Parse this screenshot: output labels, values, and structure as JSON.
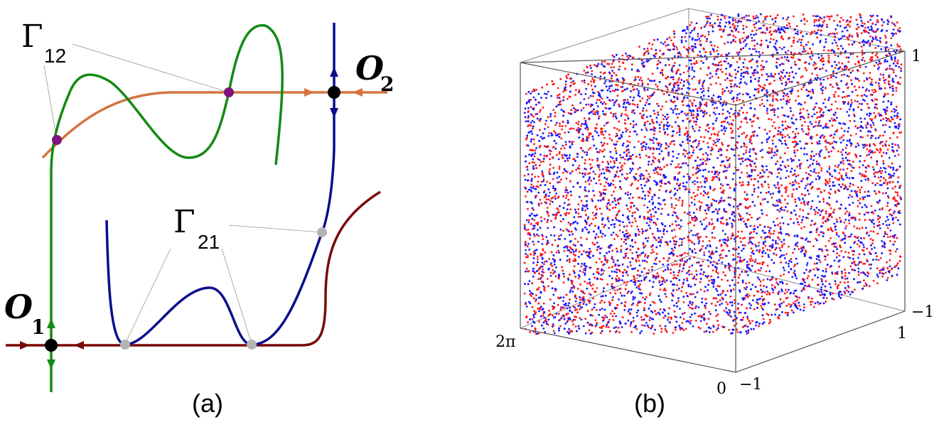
{
  "panel_a": {
    "caption": "(a)",
    "labels": {
      "gamma12_sym": "Γ",
      "gamma12_sub": "12",
      "gamma21_sym": "Γ",
      "gamma21_sub": "21",
      "o1_sym": "O",
      "o1_sub": "1",
      "o2_sym": "O",
      "o2_sub": "2"
    },
    "colors": {
      "green": "#138a13",
      "orange": "#d4733f",
      "navy": "#0a0f8a",
      "darkred": "#7a0a0a",
      "purple": "#7e137e",
      "gray": "#b4b4b4",
      "black": "#000000"
    }
  },
  "panel_b": {
    "caption": "(b)",
    "axis_labels": {
      "z_top": "1",
      "z_bottom": "−1",
      "y_right": "1",
      "y_left": "−1",
      "x_left": "2π",
      "x_right": "0"
    },
    "colors": {
      "points_a": "#ff1a1a",
      "points_b": "#1a1aff",
      "box": "#555555"
    }
  }
}
